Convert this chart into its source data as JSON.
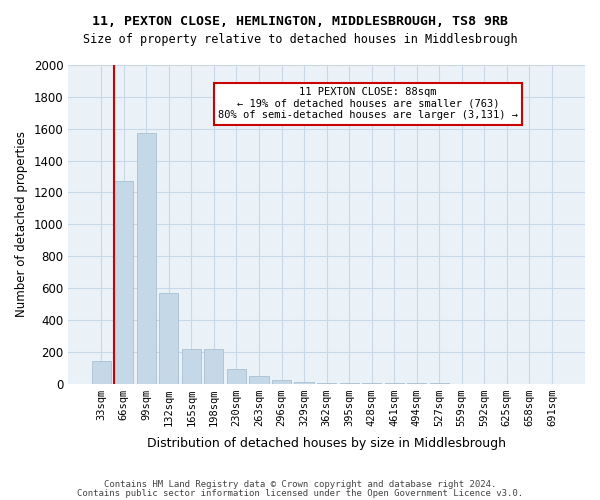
{
  "title": "11, PEXTON CLOSE, HEMLINGTON, MIDDLESBROUGH, TS8 9RB",
  "subtitle": "Size of property relative to detached houses in Middlesbrough",
  "xlabel": "Distribution of detached houses by size in Middlesbrough",
  "ylabel": "Number of detached properties",
  "bar_color": "#c5d8e8",
  "bar_edgecolor": "#a0b8cc",
  "grid_color": "#c8d8e8",
  "background_color": "#eaf2f8",
  "categories": [
    "33sqm",
    "66sqm",
    "99sqm",
    "132sqm",
    "165sqm",
    "198sqm",
    "230sqm",
    "263sqm",
    "296sqm",
    "329sqm",
    "362sqm",
    "395sqm",
    "428sqm",
    "461sqm",
    "494sqm",
    "527sqm",
    "559sqm",
    "592sqm",
    "625sqm",
    "658sqm",
    "691sqm"
  ],
  "values": [
    140,
    1270,
    1570,
    570,
    215,
    215,
    90,
    45,
    20,
    10,
    5,
    3,
    2,
    1,
    1,
    1,
    0,
    0,
    0,
    0,
    0
  ],
  "ylim": [
    0,
    2000
  ],
  "yticks": [
    0,
    200,
    400,
    600,
    800,
    1000,
    1200,
    1400,
    1600,
    1800,
    2000
  ],
  "property_line_x": 1,
  "annotation_title": "11 PEXTON CLOSE: 88sqm",
  "annotation_line1": "← 19% of detached houses are smaller (763)",
  "annotation_line2": "80% of semi-detached houses are larger (3,131) →",
  "annotation_box_color": "#ffffff",
  "annotation_box_edgecolor": "#cc0000",
  "vline_color": "#cc0000",
  "footer1": "Contains HM Land Registry data © Crown copyright and database right 2024.",
  "footer2": "Contains public sector information licensed under the Open Government Licence v3.0."
}
